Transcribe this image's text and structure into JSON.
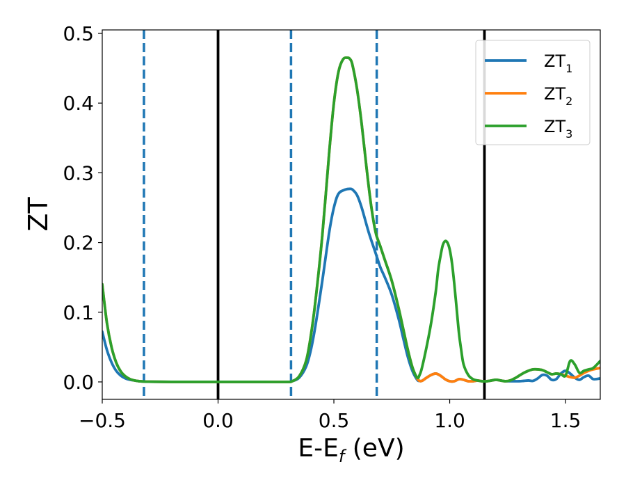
{
  "chart_data": {
    "type": "line",
    "xlabel": "E-E",
    "xlabel_sub": "f",
    "xlabel_unit": " (eV)",
    "ylabel": "ZT",
    "xlim": [
      -0.5,
      1.65
    ],
    "ylim": [
      -0.025,
      0.505
    ],
    "xticks": [
      -0.5,
      0.0,
      0.5,
      1.0,
      1.5
    ],
    "xtick_labels": [
      "−0.5",
      "0.0",
      "0.5",
      "1.0",
      "1.5"
    ],
    "yticks": [
      0.0,
      0.1,
      0.2,
      0.3,
      0.4,
      0.5
    ],
    "ytick_labels": [
      "0.0",
      "0.1",
      "0.2",
      "0.3",
      "0.4",
      "0.5"
    ],
    "grid": false,
    "legend_position": "top-right",
    "series": [
      {
        "name": "ZT",
        "name_sub": "1",
        "color": "#1f77b4",
        "x": [
          -0.5,
          -0.48,
          -0.46,
          -0.44,
          -0.42,
          -0.4,
          -0.38,
          -0.36,
          -0.34,
          -0.32,
          -0.3,
          -0.2,
          0.0,
          0.2,
          0.3,
          0.32,
          0.35,
          0.38,
          0.4,
          0.42,
          0.45,
          0.48,
          0.5,
          0.52,
          0.55,
          0.57,
          0.58,
          0.6,
          0.62,
          0.65,
          0.68,
          0.7,
          0.72,
          0.75,
          0.78,
          0.8,
          0.82,
          0.84,
          0.86,
          0.87,
          0.88,
          0.9,
          0.92,
          0.94,
          0.96,
          0.98,
          1.0,
          1.02,
          1.04,
          1.06,
          1.08,
          1.1,
          1.12,
          1.14,
          1.16,
          1.18,
          1.2,
          1.22,
          1.24,
          1.26,
          1.28,
          1.3,
          1.32,
          1.34,
          1.36,
          1.38,
          1.4,
          1.42,
          1.44,
          1.46,
          1.48,
          1.5,
          1.52,
          1.54,
          1.56,
          1.58,
          1.6,
          1.62,
          1.65
        ],
        "y": [
          0.072,
          0.046,
          0.028,
          0.016,
          0.009,
          0.005,
          0.003,
          0.002,
          0.001,
          0.0005,
          0.0003,
          0.0,
          0.0,
          0.0,
          0.0,
          0.001,
          0.006,
          0.022,
          0.045,
          0.08,
          0.145,
          0.215,
          0.25,
          0.27,
          0.276,
          0.277,
          0.276,
          0.268,
          0.25,
          0.215,
          0.185,
          0.165,
          0.15,
          0.125,
          0.09,
          0.062,
          0.035,
          0.015,
          0.003,
          0.0015,
          0.0015,
          0.006,
          0.01,
          0.012,
          0.009,
          0.004,
          0.001,
          0.001,
          0.004,
          0.003,
          0.001,
          0.001,
          0.002,
          0.001,
          0.001,
          0.002,
          0.003,
          0.002,
          0.001,
          0.001,
          0.001,
          0.001,
          0.0015,
          0.002,
          0.0015,
          0.005,
          0.01,
          0.009,
          0.003,
          0.004,
          0.012,
          0.016,
          0.012,
          0.006,
          0.003,
          0.007,
          0.009,
          0.004,
          0.005
        ]
      },
      {
        "name": "ZT",
        "name_sub": "2",
        "color": "#ff7f0e",
        "x": [
          -0.5,
          -0.48,
          -0.46,
          -0.44,
          -0.42,
          -0.4,
          -0.38,
          -0.36,
          -0.34,
          -0.32,
          -0.3,
          -0.2,
          0.0,
          0.2,
          0.3,
          0.32,
          0.35,
          0.38,
          0.4,
          0.42,
          0.45,
          0.48,
          0.5,
          0.52,
          0.54,
          0.56,
          0.57,
          0.58,
          0.6,
          0.62,
          0.64,
          0.66,
          0.68,
          0.7,
          0.72,
          0.75,
          0.78,
          0.8,
          0.82,
          0.84,
          0.86,
          0.87,
          0.88,
          0.9,
          0.92,
          0.94,
          0.96,
          0.98,
          1.0,
          1.02,
          1.04,
          1.06,
          1.08,
          1.1,
          1.12,
          1.14,
          1.16,
          1.18,
          1.2,
          1.22,
          1.24,
          1.26,
          1.28,
          1.3,
          1.32,
          1.34,
          1.36,
          1.38,
          1.4,
          1.42,
          1.44,
          1.46,
          1.48,
          1.5,
          1.52,
          1.54,
          1.56,
          1.58,
          1.6,
          1.62,
          1.65
        ],
        "y": [
          0.14,
          0.085,
          0.05,
          0.028,
          0.015,
          0.008,
          0.004,
          0.002,
          0.001,
          0.0006,
          0.0003,
          0.0,
          0.0,
          0.0,
          0.0,
          0.001,
          0.008,
          0.03,
          0.065,
          0.115,
          0.21,
          0.33,
          0.4,
          0.445,
          0.463,
          0.465,
          0.463,
          0.455,
          0.42,
          0.37,
          0.31,
          0.255,
          0.215,
          0.195,
          0.175,
          0.145,
          0.105,
          0.075,
          0.045,
          0.02,
          0.005,
          0.0015,
          0.0015,
          0.006,
          0.01,
          0.012,
          0.009,
          0.004,
          0.001,
          0.001,
          0.004,
          0.003,
          0.001,
          0.001,
          0.002,
          0.001,
          0.001,
          0.002,
          0.003,
          0.002,
          0.001,
          0.002,
          0.005,
          0.009,
          0.013,
          0.016,
          0.018,
          0.018,
          0.017,
          0.014,
          0.011,
          0.012,
          0.011,
          0.009,
          0.007,
          0.006,
          0.009,
          0.013,
          0.016,
          0.018,
          0.02
        ]
      },
      {
        "name": "ZT",
        "name_sub": "3",
        "color": "#2ca02c",
        "x": [
          -0.5,
          -0.48,
          -0.46,
          -0.44,
          -0.42,
          -0.4,
          -0.38,
          -0.36,
          -0.34,
          -0.32,
          -0.3,
          -0.2,
          0.0,
          0.2,
          0.3,
          0.32,
          0.35,
          0.38,
          0.4,
          0.42,
          0.45,
          0.48,
          0.5,
          0.52,
          0.54,
          0.56,
          0.57,
          0.58,
          0.6,
          0.62,
          0.64,
          0.66,
          0.68,
          0.7,
          0.72,
          0.75,
          0.78,
          0.8,
          0.82,
          0.84,
          0.86,
          0.87,
          0.88,
          0.9,
          0.92,
          0.94,
          0.95,
          0.96,
          0.97,
          0.98,
          0.99,
          1.0,
          1.01,
          1.02,
          1.03,
          1.04,
          1.05,
          1.06,
          1.08,
          1.1,
          1.12,
          1.14,
          1.16,
          1.18,
          1.2,
          1.22,
          1.24,
          1.26,
          1.28,
          1.3,
          1.32,
          1.34,
          1.36,
          1.38,
          1.4,
          1.42,
          1.44,
          1.46,
          1.48,
          1.5,
          1.52,
          1.54,
          1.56,
          1.58,
          1.6,
          1.62,
          1.65
        ],
        "y": [
          0.14,
          0.085,
          0.05,
          0.028,
          0.015,
          0.008,
          0.004,
          0.002,
          0.001,
          0.0006,
          0.0003,
          0.0,
          0.0,
          0.0,
          0.0,
          0.001,
          0.008,
          0.03,
          0.065,
          0.115,
          0.21,
          0.33,
          0.4,
          0.445,
          0.463,
          0.465,
          0.463,
          0.455,
          0.42,
          0.37,
          0.31,
          0.255,
          0.215,
          0.195,
          0.175,
          0.145,
          0.105,
          0.075,
          0.045,
          0.02,
          0.006,
          0.01,
          0.02,
          0.05,
          0.085,
          0.13,
          0.16,
          0.18,
          0.196,
          0.202,
          0.2,
          0.19,
          0.17,
          0.14,
          0.105,
          0.07,
          0.045,
          0.025,
          0.01,
          0.004,
          0.002,
          0.001,
          0.001,
          0.002,
          0.003,
          0.002,
          0.001,
          0.002,
          0.005,
          0.009,
          0.013,
          0.016,
          0.018,
          0.018,
          0.017,
          0.014,
          0.011,
          0.012,
          0.011,
          0.009,
          0.03,
          0.025,
          0.013,
          0.016,
          0.018,
          0.02,
          0.03
        ]
      }
    ],
    "vertical_lines": [
      {
        "x": -0.32,
        "style": "dashed",
        "color": "#1f77b4"
      },
      {
        "x": 0.0,
        "style": "solid",
        "color": "#000000"
      },
      {
        "x": 0.315,
        "style": "dashed",
        "color": "#1f77b4"
      },
      {
        "x": 0.685,
        "style": "dashed",
        "color": "#1f77b4"
      },
      {
        "x": 1.15,
        "style": "solid",
        "color": "#000000"
      }
    ]
  }
}
